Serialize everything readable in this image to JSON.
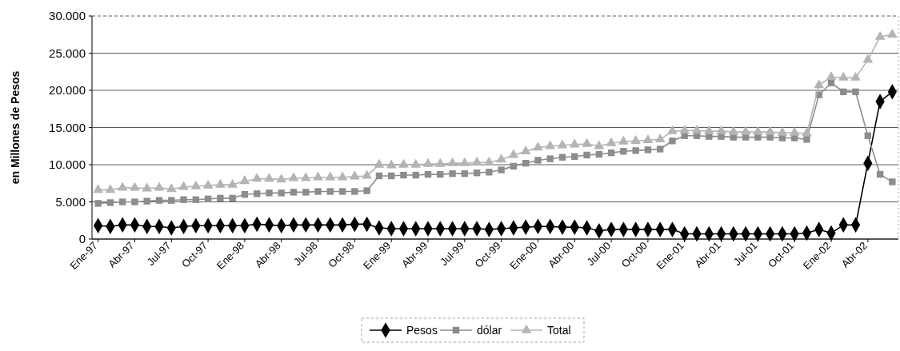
{
  "chart_data": {
    "type": "line",
    "ylabel": "en Millones de Pesos",
    "categories": [
      "Ene-97",
      null,
      null,
      "Abr-97",
      null,
      null,
      "Jul-97",
      null,
      null,
      "Oct-97",
      null,
      null,
      "Ene-98",
      null,
      null,
      "Abr-98",
      null,
      null,
      "Jul-98",
      null,
      null,
      "Oct-98",
      null,
      null,
      "Ene-99",
      null,
      null,
      "Abr-99",
      null,
      null,
      "Jul-99",
      null,
      null,
      "Oct-99",
      null,
      null,
      "Ene-00",
      null,
      null,
      "Abr-00",
      null,
      null,
      "Jul-00",
      null,
      null,
      "Oct-00",
      null,
      null,
      "Ene-01",
      null,
      null,
      "Abr-01",
      null,
      null,
      "Jul-01",
      null,
      null,
      "Oct-01",
      null,
      null,
      "Ene-02",
      null,
      null,
      "Abr-02",
      null,
      null
    ],
    "series": [
      {
        "name": "Pesos",
        "color": "#000000",
        "marker": "diamond",
        "values": [
          1800,
          1700,
          1900,
          1900,
          1700,
          1700,
          1500,
          1700,
          1800,
          1800,
          1800,
          1800,
          1800,
          2000,
          1900,
          1800,
          1900,
          1900,
          1900,
          1900,
          1900,
          2000,
          2000,
          1500,
          1400,
          1400,
          1400,
          1400,
          1400,
          1400,
          1400,
          1400,
          1300,
          1400,
          1500,
          1600,
          1700,
          1700,
          1600,
          1600,
          1500,
          1100,
          1300,
          1300,
          1300,
          1300,
          1300,
          1300,
          700,
          700,
          700,
          700,
          700,
          700,
          700,
          700,
          700,
          700,
          800,
          1300,
          800,
          1900,
          1900,
          10200,
          18500,
          19800
        ]
      },
      {
        "name": "dólar",
        "color": "#8c8c8c",
        "marker": "square",
        "values": [
          4800,
          4900,
          5000,
          5000,
          5100,
          5200,
          5200,
          5300,
          5300,
          5400,
          5500,
          5500,
          6000,
          6100,
          6200,
          6200,
          6300,
          6300,
          6400,
          6400,
          6400,
          6400,
          6500,
          8500,
          8500,
          8600,
          8600,
          8700,
          8700,
          8800,
          8800,
          8900,
          9000,
          9300,
          9800,
          10200,
          10600,
          10800,
          11000,
          11100,
          11300,
          11400,
          11600,
          11800,
          11900,
          12000,
          12100,
          13200,
          13900,
          13900,
          13800,
          13800,
          13700,
          13700,
          13700,
          13700,
          13600,
          13600,
          13400,
          19400,
          21000,
          19800,
          19800,
          13900,
          8700,
          7700
        ]
      },
      {
        "name": "Total",
        "color": "#b4b4b4",
        "marker": "triangle",
        "values": [
          6600,
          6600,
          6900,
          6900,
          6800,
          6900,
          6700,
          7000,
          7100,
          7200,
          7300,
          7300,
          7800,
          8100,
          8100,
          8000,
          8200,
          8200,
          8300,
          8300,
          8300,
          8400,
          8500,
          10000,
          9900,
          10000,
          10000,
          10100,
          10100,
          10200,
          10200,
          10300,
          10300,
          10700,
          11300,
          11800,
          12300,
          12500,
          12600,
          12700,
          12800,
          12500,
          12900,
          13100,
          13200,
          13300,
          13400,
          14500,
          14600,
          14600,
          14500,
          14500,
          14400,
          14400,
          14400,
          14400,
          14300,
          14300,
          14200,
          20700,
          21800,
          21700,
          21700,
          24100,
          27200,
          27500
        ]
      }
    ],
    "ylim": [
      0,
      30000
    ],
    "yticks": [
      {
        "value": 0,
        "label": "0"
      },
      {
        "value": 5000,
        "label": "5.000"
      },
      {
        "value": 10000,
        "label": "10.000"
      },
      {
        "value": 15000,
        "label": "15.000"
      },
      {
        "value": 20000,
        "label": "20.000"
      },
      {
        "value": 25000,
        "label": "25.000"
      },
      {
        "value": 30000,
        "label": "30.000"
      }
    ],
    "grid": "y",
    "legend": "bottom",
    "line_style": "solid"
  }
}
